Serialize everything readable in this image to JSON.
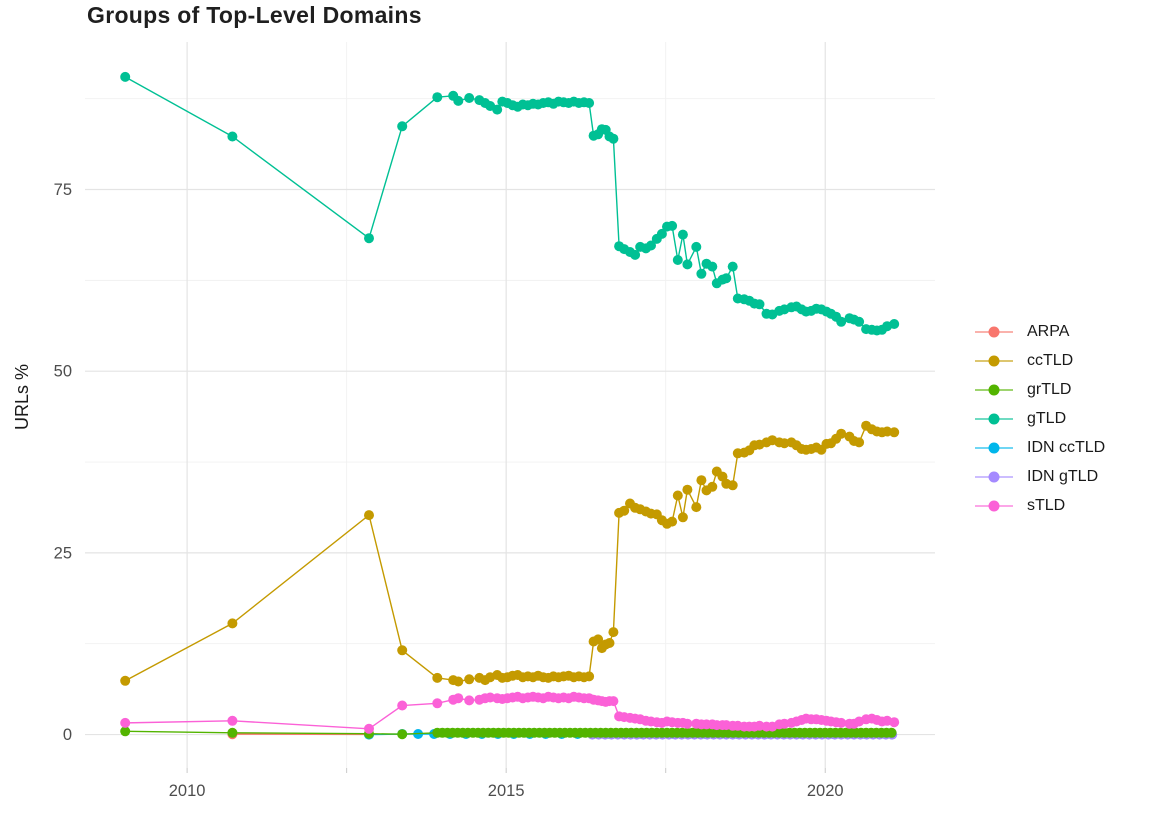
{
  "page": {
    "title": "Groups of Top-Level Domains"
  },
  "axes": {
    "y_title": "URLs %",
    "y_tick_values": [
      0,
      25,
      50,
      75
    ],
    "y_tick_labels": [
      "0",
      "25",
      "50",
      "75"
    ],
    "x_tick_values": [
      2010,
      2015,
      2020
    ],
    "x_tick_labels": [
      "2010",
      "2015",
      "2020"
    ]
  },
  "chart_data": {
    "type": "line",
    "title": "Groups of Top-Level Domains",
    "xlabel": "",
    "ylabel": "URLs %",
    "xlim": [
      2008.4,
      2021.72
    ],
    "ylim": [
      -4.6,
      95.3
    ],
    "grid": true,
    "legend_position": "right",
    "marker": "point",
    "series": [
      {
        "name": "ARPA",
        "color": "#F8766D",
        "points": [
          [
            2010.71,
            0.05
          ],
          [
            2012.85,
            0.02
          ]
        ]
      },
      {
        "name": "ccTLD",
        "color": "#C49A00",
        "points": [
          [
            2009.03,
            7.4
          ],
          [
            2010.71,
            15.3
          ],
          [
            2012.85,
            30.2
          ],
          [
            2013.37,
            11.6
          ],
          [
            2013.92,
            7.8
          ],
          [
            2014.17,
            7.5
          ],
          [
            2014.25,
            7.3
          ],
          [
            2014.42,
            7.6
          ],
          [
            2014.58,
            7.8
          ],
          [
            2014.67,
            7.5
          ],
          [
            2014.75,
            7.9
          ],
          [
            2014.86,
            8.2
          ],
          [
            2014.94,
            7.8
          ],
          [
            2015.02,
            7.9
          ],
          [
            2015.1,
            8.1
          ],
          [
            2015.18,
            8.2
          ],
          [
            2015.26,
            7.9
          ],
          [
            2015.34,
            8.0
          ],
          [
            2015.42,
            7.9
          ],
          [
            2015.5,
            8.1
          ],
          [
            2015.58,
            7.9
          ],
          [
            2015.66,
            7.8
          ],
          [
            2015.74,
            8.0
          ],
          [
            2015.82,
            7.9
          ],
          [
            2015.9,
            8.0
          ],
          [
            2015.98,
            8.1
          ],
          [
            2016.06,
            7.9
          ],
          [
            2016.14,
            8.0
          ],
          [
            2016.22,
            7.9
          ],
          [
            2016.3,
            8.0
          ],
          [
            2016.37,
            12.8
          ],
          [
            2016.44,
            13.1
          ],
          [
            2016.5,
            11.9
          ],
          [
            2016.56,
            12.4
          ],
          [
            2016.62,
            12.6
          ],
          [
            2016.68,
            14.1
          ],
          [
            2016.77,
            30.5
          ],
          [
            2016.85,
            30.8
          ],
          [
            2016.94,
            31.8
          ],
          [
            2017.02,
            31.2
          ],
          [
            2017.1,
            31.0
          ],
          [
            2017.19,
            30.7
          ],
          [
            2017.27,
            30.4
          ],
          [
            2017.36,
            30.3
          ],
          [
            2017.44,
            29.5
          ],
          [
            2017.52,
            29.0
          ],
          [
            2017.6,
            29.3
          ],
          [
            2017.69,
            32.9
          ],
          [
            2017.77,
            29.9
          ],
          [
            2017.84,
            33.7
          ],
          [
            2017.98,
            31.3
          ],
          [
            2018.06,
            35.0
          ],
          [
            2018.14,
            33.6
          ],
          [
            2018.23,
            34.1
          ],
          [
            2018.3,
            36.2
          ],
          [
            2018.39,
            35.5
          ],
          [
            2018.45,
            34.5
          ],
          [
            2018.55,
            34.3
          ],
          [
            2018.63,
            38.7
          ],
          [
            2018.73,
            38.8
          ],
          [
            2018.81,
            39.1
          ],
          [
            2018.89,
            39.8
          ],
          [
            2018.97,
            39.9
          ],
          [
            2019.08,
            40.2
          ],
          [
            2019.17,
            40.5
          ],
          [
            2019.28,
            40.2
          ],
          [
            2019.36,
            40.1
          ],
          [
            2019.47,
            40.2
          ],
          [
            2019.55,
            39.8
          ],
          [
            2019.63,
            39.3
          ],
          [
            2019.7,
            39.2
          ],
          [
            2019.78,
            39.3
          ],
          [
            2019.86,
            39.5
          ],
          [
            2019.94,
            39.2
          ],
          [
            2020.02,
            40.0
          ],
          [
            2020.09,
            40.1
          ],
          [
            2020.17,
            40.7
          ],
          [
            2020.25,
            41.4
          ],
          [
            2020.38,
            41.0
          ],
          [
            2020.45,
            40.4
          ],
          [
            2020.53,
            40.2
          ],
          [
            2020.64,
            42.5
          ],
          [
            2020.73,
            42.0
          ],
          [
            2020.81,
            41.7
          ],
          [
            2020.89,
            41.6
          ],
          [
            2020.97,
            41.7
          ],
          [
            2021.08,
            41.6
          ]
        ]
      },
      {
        "name": "grTLD",
        "color": "#53B400",
        "points": [
          [
            2009.03,
            0.45
          ],
          [
            2010.71,
            0.25
          ],
          [
            2012.85,
            0.12
          ],
          [
            2013.37,
            0.05
          ]
        ],
        "flat_run": {
          "x_start": 2013.92,
          "x_end": 2021.05,
          "x_step": 0.08,
          "y": 0.25
        }
      },
      {
        "name": "gTLD",
        "color": "#00C094",
        "points": [
          [
            2009.03,
            90.5
          ],
          [
            2010.71,
            82.3
          ],
          [
            2012.85,
            68.3
          ],
          [
            2013.37,
            83.7
          ],
          [
            2013.92,
            87.7
          ],
          [
            2014.17,
            87.9
          ],
          [
            2014.25,
            87.2
          ],
          [
            2014.42,
            87.6
          ],
          [
            2014.58,
            87.3
          ],
          [
            2014.67,
            86.9
          ],
          [
            2014.75,
            86.5
          ],
          [
            2014.86,
            86.0
          ],
          [
            2014.94,
            87.1
          ],
          [
            2015.02,
            86.9
          ],
          [
            2015.1,
            86.6
          ],
          [
            2015.18,
            86.4
          ],
          [
            2015.26,
            86.7
          ],
          [
            2015.34,
            86.6
          ],
          [
            2015.42,
            86.8
          ],
          [
            2015.5,
            86.7
          ],
          [
            2015.58,
            86.9
          ],
          [
            2015.66,
            87.0
          ],
          [
            2015.74,
            86.8
          ],
          [
            2015.82,
            87.1
          ],
          [
            2015.9,
            87.0
          ],
          [
            2015.98,
            86.9
          ],
          [
            2016.06,
            87.1
          ],
          [
            2016.14,
            86.9
          ],
          [
            2016.22,
            87.0
          ],
          [
            2016.3,
            86.9
          ],
          [
            2016.37,
            82.4
          ],
          [
            2016.44,
            82.6
          ],
          [
            2016.5,
            83.3
          ],
          [
            2016.56,
            83.2
          ],
          [
            2016.62,
            82.3
          ],
          [
            2016.68,
            82.0
          ],
          [
            2016.77,
            67.2
          ],
          [
            2016.85,
            66.8
          ],
          [
            2016.94,
            66.4
          ],
          [
            2017.02,
            66.0
          ],
          [
            2017.1,
            67.1
          ],
          [
            2017.19,
            66.9
          ],
          [
            2017.27,
            67.3
          ],
          [
            2017.36,
            68.2
          ],
          [
            2017.44,
            68.9
          ],
          [
            2017.52,
            69.9
          ],
          [
            2017.6,
            70.0
          ],
          [
            2017.69,
            65.3
          ],
          [
            2017.77,
            68.8
          ],
          [
            2017.84,
            64.7
          ],
          [
            2017.98,
            67.1
          ],
          [
            2018.06,
            63.4
          ],
          [
            2018.14,
            64.8
          ],
          [
            2018.23,
            64.4
          ],
          [
            2018.3,
            62.1
          ],
          [
            2018.39,
            62.6
          ],
          [
            2018.45,
            62.8
          ],
          [
            2018.55,
            64.4
          ],
          [
            2018.63,
            60.0
          ],
          [
            2018.73,
            59.9
          ],
          [
            2018.81,
            59.7
          ],
          [
            2018.89,
            59.3
          ],
          [
            2018.97,
            59.2
          ],
          [
            2019.08,
            57.9
          ],
          [
            2019.17,
            57.8
          ],
          [
            2019.28,
            58.3
          ],
          [
            2019.36,
            58.5
          ],
          [
            2019.47,
            58.8
          ],
          [
            2019.55,
            58.9
          ],
          [
            2019.63,
            58.5
          ],
          [
            2019.7,
            58.2
          ],
          [
            2019.78,
            58.3
          ],
          [
            2019.86,
            58.6
          ],
          [
            2019.94,
            58.5
          ],
          [
            2020.02,
            58.2
          ],
          [
            2020.09,
            57.9
          ],
          [
            2020.17,
            57.5
          ],
          [
            2020.25,
            56.8
          ],
          [
            2020.38,
            57.3
          ],
          [
            2020.45,
            57.1
          ],
          [
            2020.53,
            56.8
          ],
          [
            2020.64,
            55.8
          ],
          [
            2020.73,
            55.7
          ],
          [
            2020.81,
            55.6
          ],
          [
            2020.89,
            55.7
          ],
          [
            2020.97,
            56.2
          ],
          [
            2021.08,
            56.5
          ]
        ]
      },
      {
        "name": "IDN ccTLD",
        "color": "#00B6EB",
        "points": [
          [
            2012.85,
            0.0
          ]
        ],
        "flat_run": {
          "x_start": 2013.37,
          "x_end": 2021.05,
          "x_step": 0.25,
          "y": 0.08
        }
      },
      {
        "name": "IDN gTLD",
        "color": "#A58AFF",
        "points": [],
        "flat_run": {
          "x_start": 2016.35,
          "x_end": 2021.05,
          "x_step": 0.1,
          "y": 0.0
        }
      },
      {
        "name": "sTLD",
        "color": "#FB61D7",
        "points": [
          [
            2009.03,
            1.6
          ],
          [
            2010.71,
            1.9
          ],
          [
            2012.85,
            0.8
          ],
          [
            2013.37,
            4.0
          ],
          [
            2013.92,
            4.3
          ],
          [
            2014.17,
            4.8
          ],
          [
            2014.25,
            5.0
          ],
          [
            2014.42,
            4.7
          ],
          [
            2014.58,
            4.8
          ],
          [
            2014.67,
            5.0
          ],
          [
            2014.75,
            5.1
          ],
          [
            2014.86,
            5.0
          ],
          [
            2014.94,
            4.9
          ],
          [
            2015.02,
            5.0
          ],
          [
            2015.1,
            5.1
          ],
          [
            2015.18,
            5.2
          ],
          [
            2015.26,
            5.0
          ],
          [
            2015.34,
            5.1
          ],
          [
            2015.42,
            5.2
          ],
          [
            2015.5,
            5.1
          ],
          [
            2015.58,
            5.0
          ],
          [
            2015.66,
            5.2
          ],
          [
            2015.74,
            5.1
          ],
          [
            2015.82,
            5.0
          ],
          [
            2015.9,
            5.1
          ],
          [
            2015.98,
            5.0
          ],
          [
            2016.06,
            5.2
          ],
          [
            2016.14,
            5.1
          ],
          [
            2016.22,
            5.0
          ],
          [
            2016.3,
            5.0
          ],
          [
            2016.37,
            4.8
          ],
          [
            2016.44,
            4.7
          ],
          [
            2016.5,
            4.6
          ],
          [
            2016.56,
            4.5
          ],
          [
            2016.62,
            4.6
          ],
          [
            2016.68,
            4.6
          ],
          [
            2016.77,
            2.5
          ],
          [
            2016.85,
            2.4
          ],
          [
            2016.94,
            2.3
          ],
          [
            2017.02,
            2.2
          ],
          [
            2017.1,
            2.1
          ],
          [
            2017.19,
            1.9
          ],
          [
            2017.27,
            1.8
          ],
          [
            2017.36,
            1.7
          ],
          [
            2017.44,
            1.6
          ],
          [
            2017.52,
            1.8
          ],
          [
            2017.6,
            1.7
          ],
          [
            2017.69,
            1.6
          ],
          [
            2017.77,
            1.6
          ],
          [
            2017.84,
            1.5
          ],
          [
            2017.98,
            1.5
          ],
          [
            2018.06,
            1.4
          ],
          [
            2018.14,
            1.4
          ],
          [
            2018.23,
            1.4
          ],
          [
            2018.3,
            1.3
          ],
          [
            2018.39,
            1.3
          ],
          [
            2018.45,
            1.3
          ],
          [
            2018.55,
            1.2
          ],
          [
            2018.63,
            1.2
          ],
          [
            2018.73,
            1.1
          ],
          [
            2018.81,
            1.1
          ],
          [
            2018.89,
            1.1
          ],
          [
            2018.97,
            1.2
          ],
          [
            2019.08,
            1.1
          ],
          [
            2019.17,
            1.1
          ],
          [
            2019.28,
            1.4
          ],
          [
            2019.36,
            1.5
          ],
          [
            2019.47,
            1.6
          ],
          [
            2019.55,
            1.8
          ],
          [
            2019.63,
            2.0
          ],
          [
            2019.7,
            2.2
          ],
          [
            2019.78,
            2.1
          ],
          [
            2019.86,
            2.1
          ],
          [
            2019.94,
            2.0
          ],
          [
            2020.02,
            1.9
          ],
          [
            2020.09,
            1.8
          ],
          [
            2020.17,
            1.7
          ],
          [
            2020.25,
            1.6
          ],
          [
            2020.38,
            1.5
          ],
          [
            2020.45,
            1.5
          ],
          [
            2020.53,
            1.8
          ],
          [
            2020.64,
            2.1
          ],
          [
            2020.73,
            2.2
          ],
          [
            2020.81,
            2.0
          ],
          [
            2020.89,
            1.8
          ],
          [
            2020.97,
            1.9
          ],
          [
            2021.08,
            1.7
          ]
        ]
      }
    ]
  }
}
